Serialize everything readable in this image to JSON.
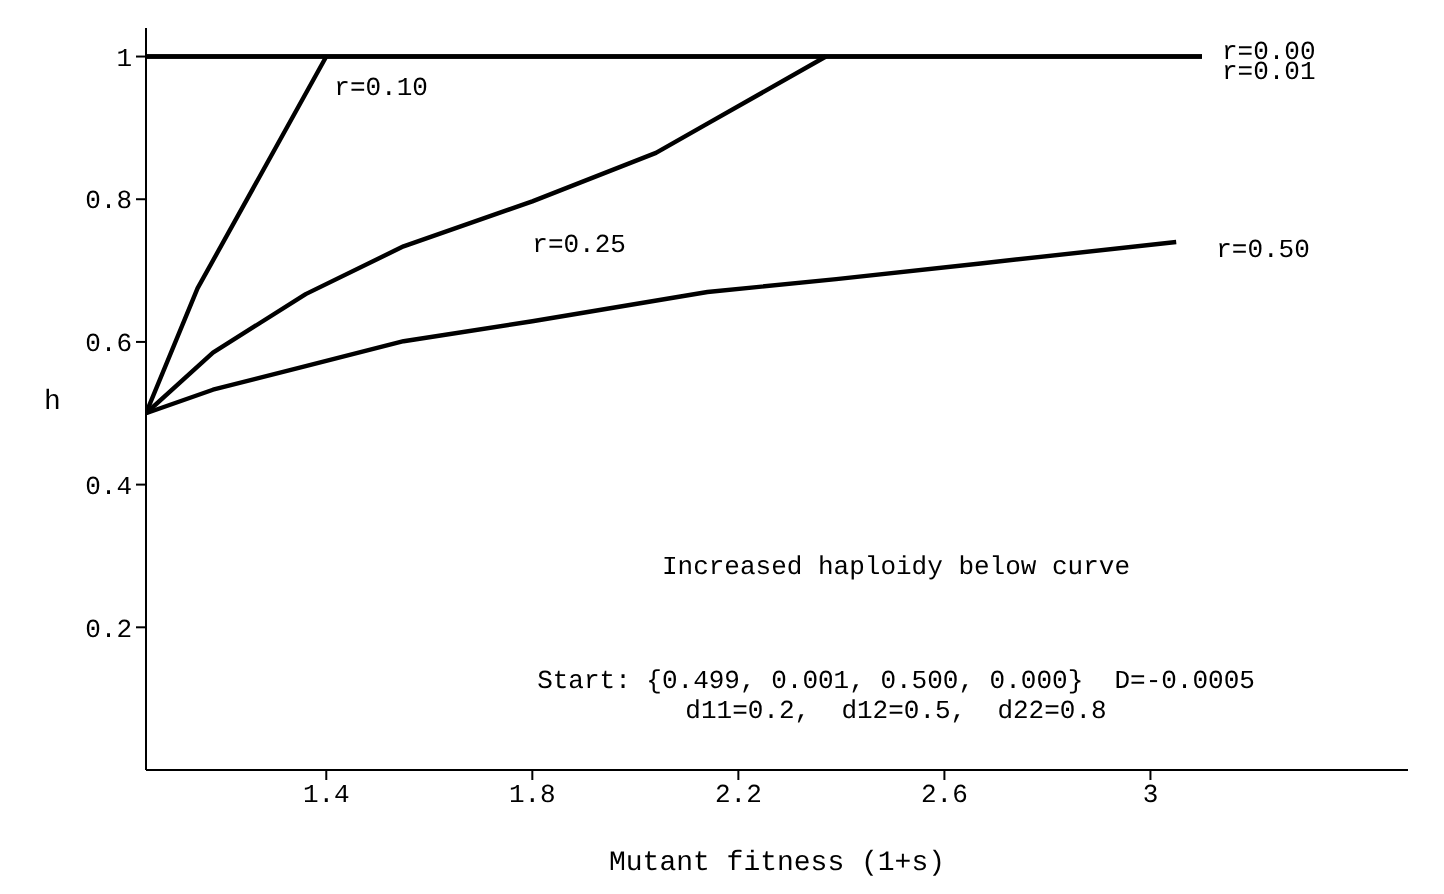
{
  "chart_data": {
    "type": "line",
    "xlabel": "Mutant fitness (1+s)",
    "ylabel": "h",
    "xlim": [
      1.05,
      3.5
    ],
    "ylim": [
      0,
      1.04
    ],
    "xticks": [
      1.4,
      1.8,
      2.2,
      2.6,
      3
    ],
    "yticks": [
      0.2,
      0.4,
      0.6,
      0.8,
      1
    ],
    "grid": false,
    "legend": false,
    "marker": "none",
    "line_style": "solid",
    "annotations": [
      "Increased haploidy below curve",
      "Start: {0.499, 0.001, 0.500, 0.000}  D=-0.0005",
      "d11=0.2,  d12=0.5,  d22=0.8"
    ],
    "series": [
      {
        "name": "r=0.00",
        "color": "#000000",
        "x": [
          1.05,
          3.1
        ],
        "values": [
          1,
          1
        ]
      },
      {
        "name": "r=0.01",
        "color": "#000000",
        "x": [
          1.05,
          3.1
        ],
        "values": [
          1,
          1
        ]
      },
      {
        "name": "r=0.10",
        "color": "#000000",
        "x": [
          1.05,
          1.15,
          1.4
        ],
        "values": [
          0.5,
          0.675,
          1
        ]
      },
      {
        "name": "r=0.25",
        "color": "#000000",
        "x": [
          1.05,
          1.18,
          1.36,
          1.55,
          1.8,
          2.04,
          2.14,
          2.37
        ],
        "values": [
          0.5,
          0.585,
          0.667,
          0.734,
          0.797,
          0.865,
          0.906,
          1
        ]
      },
      {
        "name": "r=0.50",
        "color": "#000000",
        "x": [
          1.05,
          1.18,
          1.36,
          1.55,
          1.8,
          2.14,
          2.39,
          2.67,
          3.05
        ],
        "values": [
          0.5,
          0.533,
          0.566,
          0.601,
          0.629,
          0.67,
          0.688,
          0.71,
          0.74
        ]
      }
    ]
  }
}
